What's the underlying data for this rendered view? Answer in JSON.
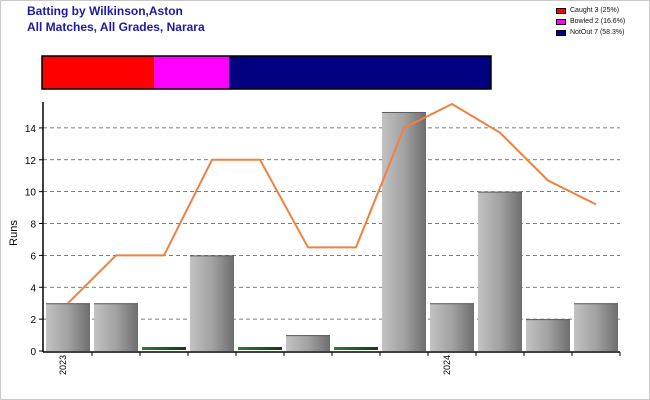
{
  "title": "Batting by Wilkinson,Aston",
  "subtitle": "All Matches, All Grades, Narara",
  "legend": [
    {
      "label": "Caught 3 (25%)",
      "color": "#ff0000"
    },
    {
      "label": "Bowled 2 (16.6%)",
      "color": "#ff00ff"
    },
    {
      "label": "NotOut 7 (58.3%)",
      "color": "#000080"
    }
  ],
  "dismissal_bar": [
    {
      "name": "Caught",
      "value": 25,
      "color": "#ff0000"
    },
    {
      "name": "Bowled",
      "value": 16.6,
      "color": "#ff00ff"
    },
    {
      "name": "NotOut",
      "value": 58.3,
      "color": "#000080"
    }
  ],
  "chart_data": {
    "type": "bar",
    "ylabel": "Runs",
    "ylim": [
      0,
      15.5
    ],
    "yticks": [
      0,
      2,
      4,
      6,
      8,
      10,
      12,
      14
    ],
    "grid": true,
    "x_tick_labels": [
      {
        "index": 0,
        "label": "2023"
      },
      {
        "index": 8,
        "label": "2024"
      }
    ],
    "values": [
      3,
      3,
      0,
      6,
      0,
      1,
      0,
      15,
      3,
      10,
      2,
      3
    ],
    "bar_colors": [
      "gray",
      "gray",
      "green",
      "gray",
      "green",
      "gray",
      "green",
      "gray",
      "gray",
      "gray",
      "gray",
      "gray"
    ],
    "line_values": [
      3,
      6,
      6,
      12,
      12,
      6.5,
      6.5,
      14,
      15.5,
      13.7,
      10.7,
      9.2
    ],
    "line_color": "#f08040"
  }
}
